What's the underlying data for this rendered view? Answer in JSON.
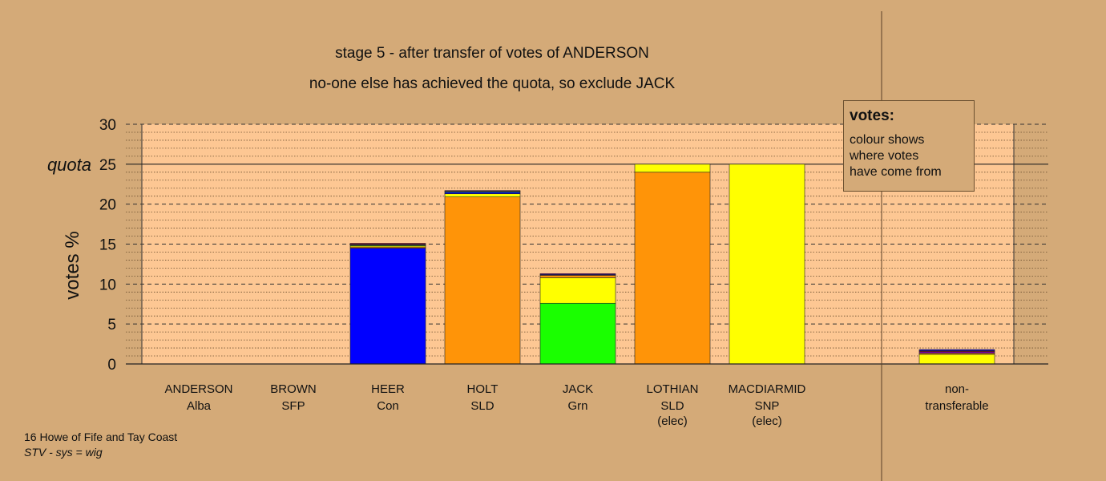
{
  "chart_data": {
    "type": "bar",
    "stacked": true,
    "title_lines": [
      "stage 5 - after transfer of votes of ANDERSON",
      "no-one else has achieved the quota, so exclude JACK"
    ],
    "ylabel": "votes %",
    "ylim": [
      0,
      30
    ],
    "yticks": [
      0,
      5,
      10,
      15,
      20,
      25,
      30
    ],
    "quota": {
      "label": "quota",
      "value": 25
    },
    "grid": true,
    "categories": [
      {
        "name": "ANDERSON",
        "party": "Alba",
        "note": "",
        "segments": []
      },
      {
        "name": "BROWN",
        "party": "SFP",
        "note": "",
        "segments": []
      },
      {
        "name": "HEER",
        "party": "Con",
        "note": "",
        "segments": [
          {
            "color": "#0000ff",
            "value": 14.5
          },
          {
            "color": "#ff9408",
            "value": 0.15
          },
          {
            "color": "#ffff00",
            "value": 0.15
          },
          {
            "color": "#1aff00",
            "value": 0.1
          },
          {
            "color": "#8000a0",
            "value": 0.1
          },
          {
            "color": "#e00030",
            "value": 0.1
          }
        ]
      },
      {
        "name": "HOLT",
        "party": "SLD",
        "note": "",
        "segments": [
          {
            "color": "#ff9408",
            "value": 20.9
          },
          {
            "color": "#ffff00",
            "value": 0.4
          },
          {
            "color": "#0000ff",
            "value": 0.2
          },
          {
            "color": "#1aff00",
            "value": 0.1
          },
          {
            "color": "#8000a0",
            "value": 0.1
          }
        ]
      },
      {
        "name": "JACK",
        "party": "Grn",
        "note": "",
        "segments": [
          {
            "color": "#1aff00",
            "value": 7.6
          },
          {
            "color": "#ffff00",
            "value": 3.2
          },
          {
            "color": "#ff9408",
            "value": 0.3
          },
          {
            "color": "#0000ff",
            "value": 0.1
          },
          {
            "color": "#8000a0",
            "value": 0.1
          }
        ]
      },
      {
        "name": "LOTHIAN",
        "party": "SLD",
        "note": "(elec)",
        "segments": [
          {
            "color": "#ff9408",
            "value": 24.0
          },
          {
            "color": "#ffff00",
            "value": 1.0
          }
        ]
      },
      {
        "name": "MACDIARMID",
        "party": "SNP",
        "note": "(elec)",
        "segments": [
          {
            "color": "#ffff00",
            "value": 25.0
          }
        ]
      },
      {
        "name": "",
        "party": "",
        "note": "",
        "segments": []
      },
      {
        "name": "non-",
        "party": "transferable",
        "note": "",
        "segments": [
          {
            "color": "#ffff00",
            "value": 1.2
          },
          {
            "color": "#ff9408",
            "value": 0.15
          },
          {
            "color": "#8000a0",
            "value": 0.2
          },
          {
            "color": "#e00030",
            "value": 0.1
          },
          {
            "color": "#0000ff",
            "value": 0.15
          }
        ]
      }
    ]
  },
  "legend": {
    "title": "votes:",
    "lines": [
      "colour shows",
      "where votes",
      "have come from"
    ]
  },
  "footer": {
    "line1": "16 Howe of Fife and Tay Coast",
    "line2": "STV - sys = wig"
  }
}
